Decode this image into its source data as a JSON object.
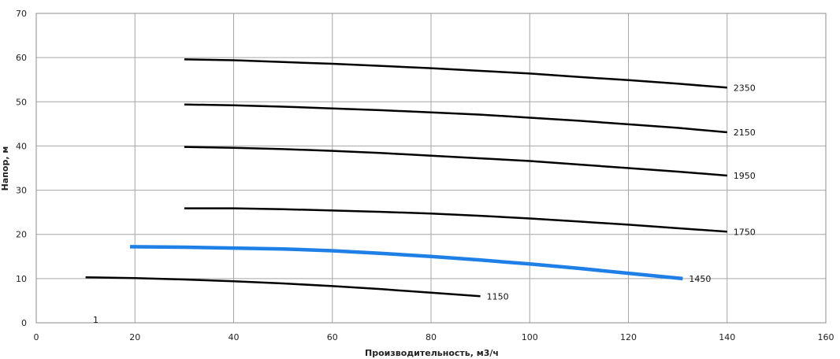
{
  "chart_data": {
    "type": "line",
    "xlabel": "Производительность,  м3/ч",
    "ylabel": "Напор, м",
    "xlim": [
      0,
      160
    ],
    "ylim": [
      0,
      70
    ],
    "xticks": [
      "0",
      "20",
      "40",
      "60",
      "80",
      "100",
      "120",
      "140",
      "160"
    ],
    "yticks": [
      "0",
      "10",
      "20",
      "30",
      "40",
      "50",
      "60",
      "70"
    ],
    "grid": true,
    "annotation": "1",
    "series": [
      {
        "name": "2350",
        "color": "#000000",
        "x": [
          30,
          40,
          50,
          60,
          70,
          80,
          90,
          100,
          110,
          120,
          130,
          140
        ],
        "y": [
          59.6,
          59.4,
          59.0,
          58.6,
          58.1,
          57.6,
          57.0,
          56.4,
          55.6,
          54.9,
          54.1,
          53.2
        ]
      },
      {
        "name": "2150",
        "color": "#000000",
        "x": [
          30,
          40,
          50,
          60,
          70,
          80,
          90,
          100,
          110,
          120,
          130,
          140
        ],
        "y": [
          49.4,
          49.2,
          48.9,
          48.5,
          48.1,
          47.6,
          47.1,
          46.4,
          45.7,
          44.9,
          44.1,
          43.1
        ]
      },
      {
        "name": "1950",
        "color": "#000000",
        "x": [
          30,
          40,
          50,
          60,
          70,
          80,
          90,
          100,
          110,
          120,
          130,
          140
        ],
        "y": [
          39.8,
          39.6,
          39.3,
          38.9,
          38.4,
          37.8,
          37.2,
          36.6,
          35.8,
          35.0,
          34.2,
          33.3
        ]
      },
      {
        "name": "1750",
        "color": "#000000",
        "x": [
          30,
          40,
          50,
          60,
          70,
          80,
          90,
          100,
          110,
          120,
          130,
          140
        ],
        "y": [
          25.9,
          25.9,
          25.7,
          25.4,
          25.1,
          24.7,
          24.2,
          23.6,
          22.9,
          22.2,
          21.4,
          20.6
        ]
      },
      {
        "name": "1450",
        "color": "#1e7fe6",
        "x": [
          19,
          30,
          40,
          50,
          60,
          70,
          80,
          90,
          100,
          110,
          120,
          131
        ],
        "y": [
          17.2,
          17.1,
          16.9,
          16.7,
          16.3,
          15.7,
          15.0,
          14.2,
          13.3,
          12.3,
          11.2,
          10.0
        ]
      },
      {
        "name": "1150",
        "color": "#000000",
        "x": [
          10,
          20,
          30,
          40,
          50,
          60,
          70,
          80,
          90
        ],
        "y": [
          10.3,
          10.1,
          9.8,
          9.4,
          8.9,
          8.3,
          7.6,
          6.8,
          6.0
        ]
      }
    ]
  }
}
